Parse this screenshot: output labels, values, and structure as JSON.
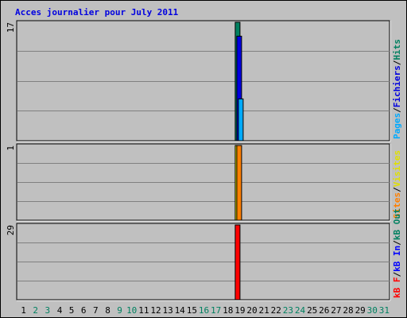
{
  "chart_data": {
    "type": "bar",
    "title": "Acces journalier pour July 2011",
    "categories": [
      "1",
      "2",
      "3",
      "4",
      "5",
      "6",
      "7",
      "8",
      "9",
      "10",
      "11",
      "12",
      "13",
      "14",
      "15",
      "16",
      "17",
      "18",
      "19",
      "20",
      "21",
      "22",
      "23",
      "24",
      "25",
      "26",
      "27",
      "28",
      "29",
      "30",
      "31"
    ],
    "weekend_days": [
      "2",
      "3",
      "9",
      "10",
      "16",
      "17",
      "23",
      "24",
      "30",
      "31"
    ],
    "panels": [
      {
        "id": "hits-files-pages",
        "ylim": [
          0,
          17
        ],
        "max_label": "17",
        "legend": [
          {
            "name": "Pages",
            "color": "#00AAFF"
          },
          {
            "name": "Fichiers",
            "color": "#0000E0"
          },
          {
            "name": "Hits",
            "color": "#008060"
          }
        ],
        "series": [
          {
            "name": "Hits",
            "color": "#008060",
            "values": [
              0,
              0,
              0,
              0,
              0,
              0,
              0,
              0,
              0,
              0,
              0,
              0,
              0,
              0,
              0,
              0,
              0,
              0,
              17,
              0,
              0,
              0,
              0,
              0,
              0,
              0,
              0,
              0,
              0,
              0,
              0
            ]
          },
          {
            "name": "Fichiers",
            "color": "#0000E0",
            "values": [
              0,
              0,
              0,
              0,
              0,
              0,
              0,
              0,
              0,
              0,
              0,
              0,
              0,
              0,
              0,
              0,
              0,
              0,
              15,
              0,
              0,
              0,
              0,
              0,
              0,
              0,
              0,
              0,
              0,
              0,
              0
            ]
          },
          {
            "name": "Pages",
            "color": "#00AAFF",
            "values": [
              0,
              0,
              0,
              0,
              0,
              0,
              0,
              0,
              0,
              0,
              0,
              0,
              0,
              0,
              0,
              0,
              0,
              0,
              6,
              0,
              0,
              0,
              0,
              0,
              0,
              0,
              0,
              0,
              0,
              0,
              0
            ]
          }
        ]
      },
      {
        "id": "sites-visits",
        "ylim": [
          0,
          1
        ],
        "max_label": "1",
        "legend": [
          {
            "name": "Sites",
            "color": "#FF8000"
          },
          {
            "name": "Visites",
            "color": "#E0E000"
          }
        ],
        "series": [
          {
            "name": "Visites",
            "color": "#E0E000",
            "values": [
              0,
              0,
              0,
              0,
              0,
              0,
              0,
              0,
              0,
              0,
              0,
              0,
              0,
              0,
              0,
              0,
              0,
              0,
              1,
              0,
              0,
              0,
              0,
              0,
              0,
              0,
              0,
              0,
              0,
              0,
              0
            ]
          },
          {
            "name": "Sites",
            "color": "#FF8000",
            "values": [
              0,
              0,
              0,
              0,
              0,
              0,
              0,
              0,
              0,
              0,
              0,
              0,
              0,
              0,
              0,
              0,
              0,
              0,
              1,
              0,
              0,
              0,
              0,
              0,
              0,
              0,
              0,
              0,
              0,
              0,
              0
            ]
          }
        ]
      },
      {
        "id": "kbytes",
        "ylim": [
          0,
          29
        ],
        "max_label": "29",
        "legend": [
          {
            "name": "kB F",
            "color": "#FF0000"
          },
          {
            "name": "kB In",
            "color": "#0000FF"
          },
          {
            "name": "kB Out",
            "color": "#008060"
          }
        ],
        "series": [
          {
            "name": "kB F",
            "color": "#FF0000",
            "values": [
              0,
              0,
              0,
              0,
              0,
              0,
              0,
              0,
              0,
              0,
              0,
              0,
              0,
              0,
              0,
              0,
              0,
              0,
              29,
              0,
              0,
              0,
              0,
              0,
              0,
              0,
              0,
              0,
              0,
              0,
              0
            ]
          }
        ]
      }
    ],
    "colors": {
      "title": "#0000E0",
      "frame_bg": "#C0C0C0",
      "weekday_label": "#000000",
      "weekend_label": "#008060",
      "legend_separator": "#000000"
    },
    "grid": true
  }
}
